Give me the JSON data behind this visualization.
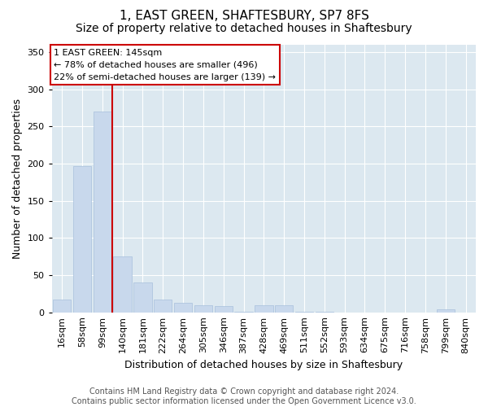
{
  "title": "1, EAST GREEN, SHAFTESBURY, SP7 8FS",
  "subtitle": "Size of property relative to detached houses in Shaftesbury",
  "xlabel": "Distribution of detached houses by size in Shaftesbury",
  "ylabel": "Number of detached properties",
  "footer_line1": "Contains HM Land Registry data © Crown copyright and database right 2024.",
  "footer_line2": "Contains public sector information licensed under the Open Government Licence v3.0.",
  "bin_labels": [
    "16sqm",
    "58sqm",
    "99sqm",
    "140sqm",
    "181sqm",
    "222sqm",
    "264sqm",
    "305sqm",
    "346sqm",
    "387sqm",
    "428sqm",
    "469sqm",
    "511sqm",
    "552sqm",
    "593sqm",
    "634sqm",
    "675sqm",
    "716sqm",
    "758sqm",
    "799sqm",
    "840sqm"
  ],
  "bar_values": [
    17,
    197,
    270,
    75,
    40,
    17,
    13,
    10,
    8,
    1,
    10,
    10,
    1,
    1,
    0,
    0,
    0,
    0,
    0,
    4,
    0
  ],
  "bar_color": "#c8d8ec",
  "bar_edge_color": "#a8c0dc",
  "highlight_line_color": "#cc0000",
  "annotation_text": "1 EAST GREEN: 145sqm\n← 78% of detached houses are smaller (496)\n22% of semi-detached houses are larger (139) →",
  "annotation_box_color": "#ffffff",
  "annotation_box_edge": "#cc0000",
  "ylim": [
    0,
    360
  ],
  "yticks": [
    0,
    50,
    100,
    150,
    200,
    250,
    300,
    350
  ],
  "plot_background": "#dce8f0",
  "figure_background": "#ffffff",
  "title_fontsize": 11,
  "subtitle_fontsize": 10,
  "axis_label_fontsize": 9,
  "tick_fontsize": 8,
  "footer_fontsize": 7
}
